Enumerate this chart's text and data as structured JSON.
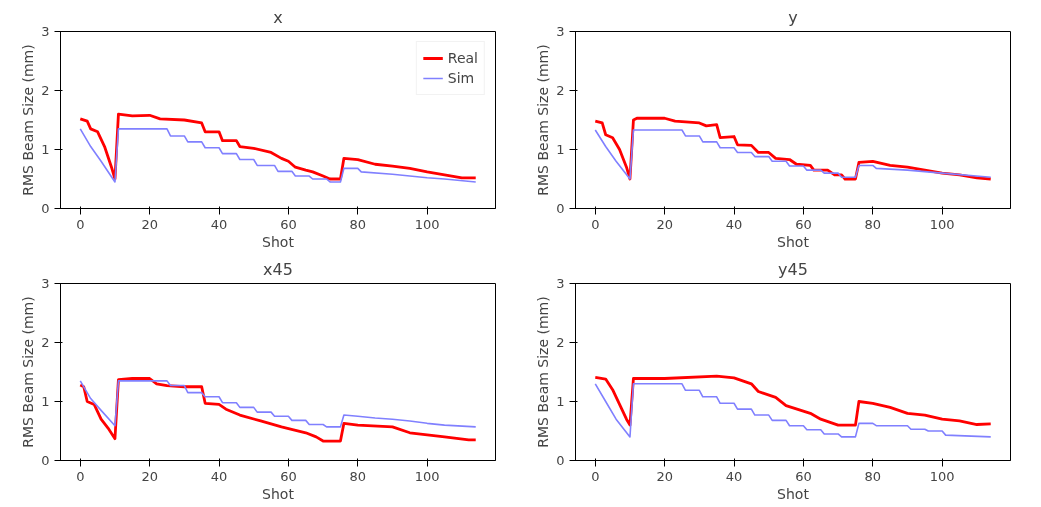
{
  "chart_data": [
    {
      "type": "line",
      "title": "x",
      "xlabel": "Shot",
      "ylabel": "RMS Beam Size (mm)",
      "xlim": [
        -5.7,
        119.7
      ],
      "ylim": [
        0,
        3
      ],
      "xticks": [
        0,
        20,
        40,
        60,
        80,
        100
      ],
      "yticks": [
        0,
        1,
        2,
        3
      ],
      "legend": "top right",
      "series": [
        {
          "name": "Real",
          "color": "#ff0000",
          "x": [
            0,
            2,
            3,
            5,
            7,
            9,
            10,
            11,
            15,
            20,
            23,
            30,
            35,
            36,
            40,
            41,
            45,
            46,
            50,
            55,
            58,
            60,
            62,
            65,
            67,
            70,
            72,
            75,
            76,
            80,
            85,
            90,
            95,
            100,
            105,
            110,
            114
          ],
          "values": [
            1.52,
            1.48,
            1.35,
            1.3,
            1.05,
            0.7,
            0.5,
            1.6,
            1.57,
            1.58,
            1.52,
            1.5,
            1.45,
            1.3,
            1.3,
            1.15,
            1.15,
            1.05,
            1.02,
            0.95,
            0.85,
            0.8,
            0.7,
            0.65,
            0.62,
            0.55,
            0.5,
            0.5,
            0.85,
            0.83,
            0.75,
            0.72,
            0.68,
            0.62,
            0.57,
            0.52,
            0.52
          ]
        },
        {
          "name": "Sim",
          "color": "#8080ff",
          "x": [
            0,
            3,
            6,
            10,
            11,
            25,
            26,
            30,
            31,
            35,
            36,
            40,
            41,
            45,
            46,
            50,
            51,
            56,
            57,
            61,
            62,
            66,
            67,
            71,
            72,
            75,
            76,
            80,
            81,
            90,
            100,
            105,
            114
          ],
          "values": [
            1.35,
            1.05,
            0.8,
            0.45,
            1.35,
            1.35,
            1.23,
            1.23,
            1.13,
            1.13,
            1.03,
            1.03,
            0.93,
            0.93,
            0.83,
            0.83,
            0.73,
            0.73,
            0.63,
            0.63,
            0.55,
            0.55,
            0.5,
            0.5,
            0.45,
            0.45,
            0.68,
            0.68,
            0.62,
            0.58,
            0.52,
            0.5,
            0.45
          ]
        }
      ]
    },
    {
      "type": "line",
      "title": "y",
      "xlabel": "Shot",
      "ylabel": "RMS Beam Size (mm)",
      "xlim": [
        -5.7,
        119.7
      ],
      "ylim": [
        0,
        3
      ],
      "xticks": [
        0,
        20,
        40,
        60,
        80,
        100
      ],
      "yticks": [
        0,
        1,
        2,
        3
      ],
      "series": [
        {
          "color": "#ff0000",
          "x": [
            0,
            2,
            3,
            5,
            7,
            9,
            10,
            11,
            12,
            20,
            23,
            30,
            32,
            35,
            36,
            40,
            41,
            45,
            47,
            50,
            52,
            56,
            58,
            62,
            63,
            67,
            69,
            71,
            72,
            75,
            76,
            80,
            85,
            90,
            95,
            100,
            105,
            110,
            114
          ],
          "values": [
            1.48,
            1.45,
            1.25,
            1.2,
            1.0,
            0.7,
            0.5,
            1.5,
            1.53,
            1.53,
            1.48,
            1.45,
            1.4,
            1.42,
            1.2,
            1.22,
            1.08,
            1.07,
            0.95,
            0.95,
            0.85,
            0.83,
            0.75,
            0.73,
            0.65,
            0.65,
            0.57,
            0.57,
            0.5,
            0.5,
            0.78,
            0.8,
            0.73,
            0.7,
            0.65,
            0.6,
            0.57,
            0.52,
            0.5
          ]
        },
        {
          "color": "#8080ff",
          "x": [
            0,
            3,
            6,
            10,
            11,
            25,
            26,
            30,
            31,
            35,
            36,
            40,
            41,
            45,
            46,
            50,
            51,
            55,
            56,
            60,
            61,
            65,
            66,
            70,
            71,
            75,
            76,
            80,
            81,
            90,
            100,
            114
          ],
          "values": [
            1.33,
            1.05,
            0.8,
            0.5,
            1.33,
            1.33,
            1.23,
            1.23,
            1.13,
            1.13,
            1.03,
            1.03,
            0.95,
            0.95,
            0.88,
            0.88,
            0.8,
            0.8,
            0.72,
            0.72,
            0.65,
            0.65,
            0.6,
            0.6,
            0.53,
            0.53,
            0.73,
            0.73,
            0.68,
            0.65,
            0.6,
            0.53
          ]
        }
      ]
    },
    {
      "type": "line",
      "title": "x45",
      "xlabel": "Shot",
      "ylabel": "RMS Beam Size (mm)",
      "xlim": [
        -5.7,
        119.7
      ],
      "ylim": [
        0,
        3
      ],
      "xticks": [
        0,
        20,
        40,
        60,
        80,
        100
      ],
      "yticks": [
        0,
        1,
        2,
        3
      ],
      "series": [
        {
          "color": "#ff0000",
          "x": [
            0,
            1,
            2,
            4,
            6,
            8,
            10,
            11,
            15,
            20,
            22,
            25,
            30,
            35,
            36,
            40,
            42,
            46,
            52,
            58,
            65,
            68,
            70,
            75,
            76,
            80,
            90,
            95,
            105,
            112,
            114
          ],
          "values": [
            1.28,
            1.25,
            1.0,
            0.95,
            0.7,
            0.55,
            0.37,
            1.37,
            1.39,
            1.39,
            1.3,
            1.27,
            1.25,
            1.25,
            0.97,
            0.95,
            0.87,
            0.77,
            0.67,
            0.57,
            0.47,
            0.4,
            0.33,
            0.33,
            0.63,
            0.6,
            0.57,
            0.47,
            0.4,
            0.35,
            0.35
          ]
        },
        {
          "color": "#8080ff",
          "x": [
            0,
            3,
            6,
            10,
            11,
            25,
            26,
            30,
            31,
            35,
            36,
            40,
            41,
            45,
            46,
            50,
            51,
            55,
            56,
            60,
            61,
            65,
            66,
            70,
            71,
            75,
            76,
            80,
            85,
            90,
            95,
            100,
            105,
            114
          ],
          "values": [
            1.35,
            1.05,
            0.85,
            0.59,
            1.35,
            1.35,
            1.27,
            1.27,
            1.15,
            1.15,
            1.08,
            1.08,
            0.98,
            0.98,
            0.9,
            0.9,
            0.82,
            0.82,
            0.75,
            0.75,
            0.68,
            0.68,
            0.61,
            0.61,
            0.57,
            0.57,
            0.77,
            0.75,
            0.72,
            0.7,
            0.67,
            0.63,
            0.6,
            0.57
          ]
        }
      ]
    },
    {
      "type": "line",
      "title": "y45",
      "xlabel": "Shot",
      "ylabel": "RMS Beam Size (mm)",
      "xlim": [
        -5.7,
        119.7
      ],
      "ylim": [
        0,
        3
      ],
      "xticks": [
        0,
        20,
        40,
        60,
        80,
        100
      ],
      "yticks": [
        0,
        1,
        2,
        3
      ],
      "series": [
        {
          "color": "#ff0000",
          "x": [
            0,
            3,
            5,
            7,
            9,
            10,
            11,
            20,
            35,
            40,
            45,
            47,
            52,
            55,
            62,
            65,
            70,
            75,
            76,
            80,
            85,
            90,
            95,
            100,
            105,
            110,
            114
          ],
          "values": [
            1.41,
            1.38,
            1.2,
            0.95,
            0.7,
            0.6,
            1.39,
            1.39,
            1.43,
            1.4,
            1.3,
            1.17,
            1.07,
            0.93,
            0.8,
            0.7,
            0.6,
            0.6,
            1.0,
            0.97,
            0.9,
            0.8,
            0.77,
            0.7,
            0.67,
            0.61,
            0.62
          ]
        },
        {
          "color": "#8080ff",
          "x": [
            0,
            3,
            6,
            10,
            11,
            25,
            26,
            30,
            31,
            35,
            36,
            40,
            41,
            45,
            46,
            50,
            51,
            55,
            56,
            60,
            61,
            65,
            66,
            70,
            71,
            75,
            76,
            80,
            81,
            90,
            91,
            95,
            96,
            100,
            101,
            114
          ],
          "values": [
            1.3,
            1.0,
            0.7,
            0.4,
            1.3,
            1.3,
            1.19,
            1.19,
            1.08,
            1.08,
            0.97,
            0.97,
            0.87,
            0.87,
            0.77,
            0.77,
            0.68,
            0.68,
            0.59,
            0.59,
            0.52,
            0.52,
            0.45,
            0.45,
            0.4,
            0.4,
            0.63,
            0.63,
            0.59,
            0.59,
            0.53,
            0.53,
            0.5,
            0.5,
            0.43,
            0.4
          ]
        }
      ]
    }
  ]
}
